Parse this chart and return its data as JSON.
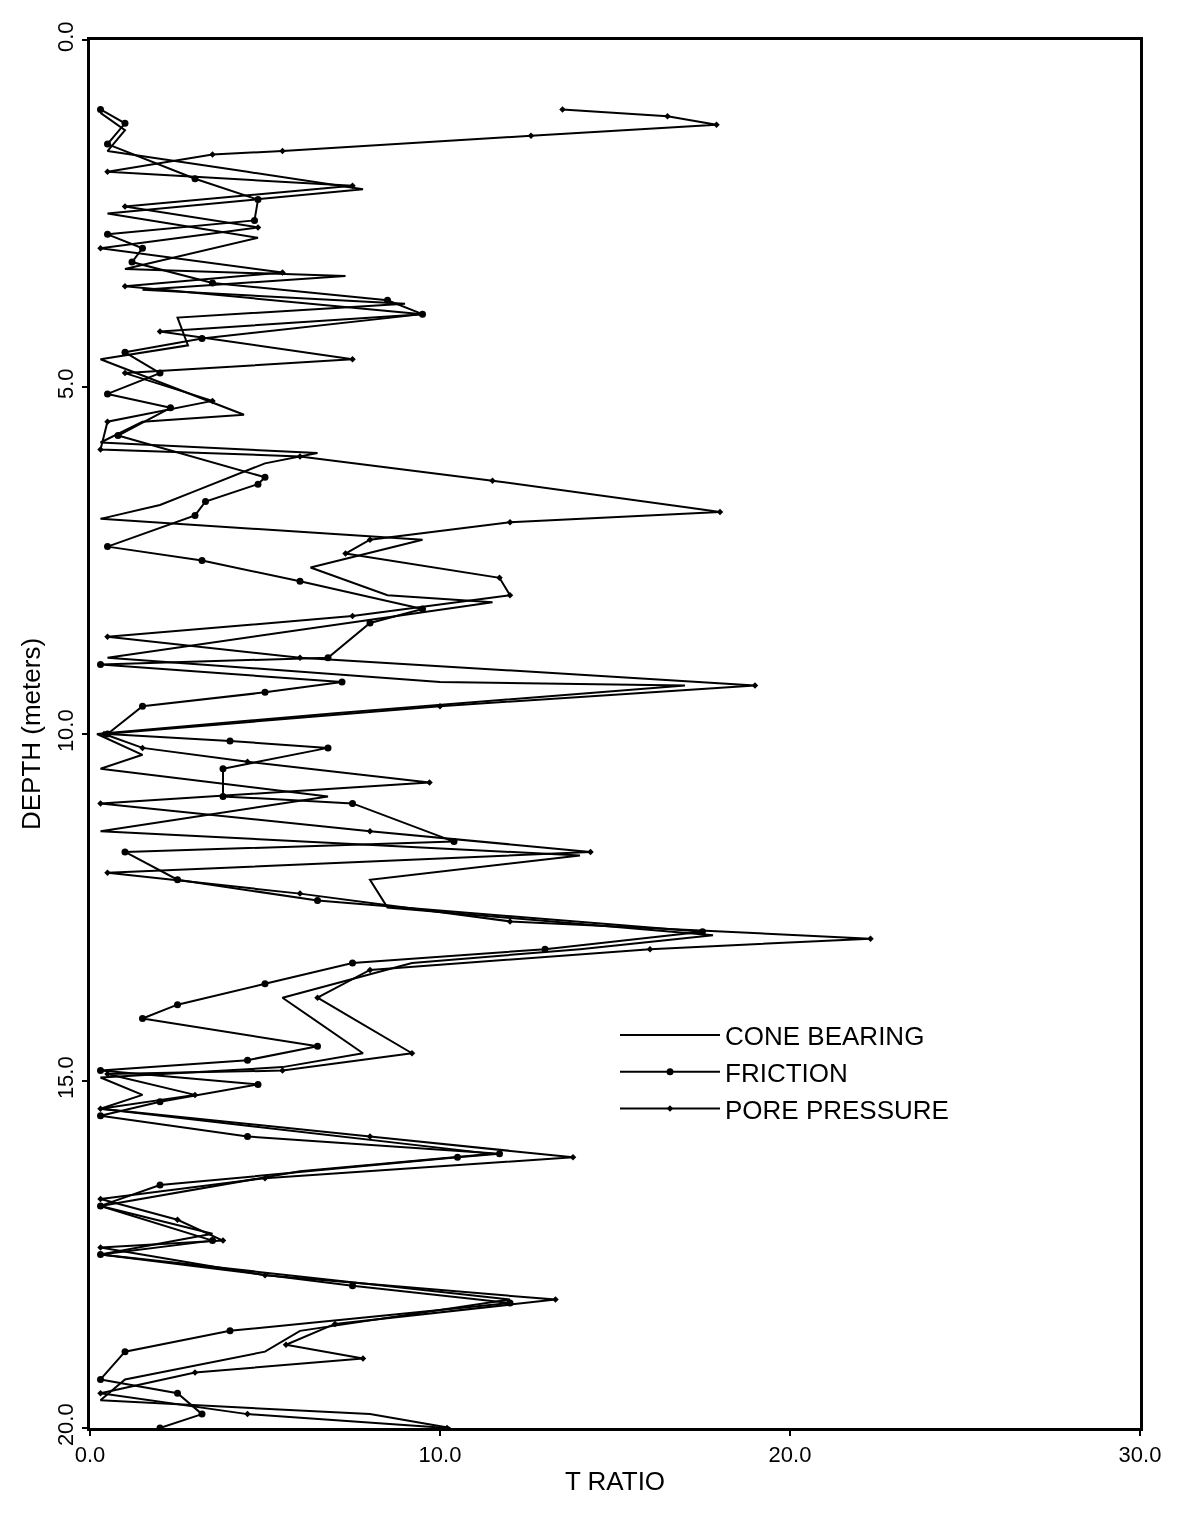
{
  "chart_data": {
    "type": "line",
    "xlabel": "T RATIO",
    "ylabel": "DEPTH (meters)",
    "xlim": [
      0,
      30
    ],
    "ylim": [
      20,
      0
    ],
    "xticks": [
      {
        "value": 0,
        "label": "0.0"
      },
      {
        "value": 10,
        "label": "10.0"
      },
      {
        "value": 20,
        "label": "20.0"
      },
      {
        "value": 30,
        "label": "30.0"
      }
    ],
    "yticks": [
      {
        "value": 0,
        "label": "0.0"
      },
      {
        "value": 5,
        "label": "5.0"
      },
      {
        "value": 10,
        "label": "10.0"
      },
      {
        "value": 15,
        "label": "15.0"
      },
      {
        "value": 20,
        "label": "20.0"
      }
    ],
    "legend": "bottom right",
    "line_style": "solid",
    "series": [
      {
        "name": "CONE BEARING",
        "color": "#000000",
        "marker": "none",
        "x": [
          0.3,
          1.0,
          0.5,
          4.5,
          7.8,
          0.5,
          4.8,
          1.0,
          7.3,
          1.5,
          9.0,
          2.5,
          2.8,
          0.3,
          4.4,
          1.5,
          0.3,
          6.5,
          5.0,
          3.0,
          2.0,
          0.3,
          9.5,
          6.3,
          8.5,
          11.5,
          0.5,
          10.0,
          17.0,
          7.0,
          0.2,
          1.5,
          0.3,
          6.8,
          0.3,
          14.0,
          8.0,
          8.5,
          17.8,
          14.0,
          9.2,
          5.5,
          7.8,
          5.5,
          0.3,
          1.5,
          0.3,
          11.5,
          6.0,
          0.3,
          3.5,
          0.3,
          12.0,
          6.0,
          5.0,
          1.0,
          0.3,
          8.0,
          10.3
        ],
        "values": [
          1.05,
          1.3,
          1.6,
          1.9,
          2.15,
          2.5,
          2.85,
          3.3,
          3.4,
          3.6,
          3.8,
          4.0,
          4.4,
          4.6,
          5.4,
          5.5,
          5.8,
          5.95,
          6.1,
          6.5,
          6.7,
          6.9,
          7.2,
          7.6,
          8.0,
          8.1,
          8.9,
          9.25,
          9.3,
          9.7,
          10.0,
          10.3,
          10.5,
          10.9,
          11.4,
          11.75,
          12.1,
          12.5,
          12.9,
          13.1,
          13.3,
          13.8,
          14.6,
          14.8,
          14.95,
          15.2,
          15.4,
          16.05,
          16.3,
          16.8,
          17.2,
          17.5,
          18.15,
          18.6,
          18.9,
          19.3,
          19.6,
          19.8,
          20.0
        ]
      },
      {
        "name": "FRICTION",
        "color": "#000000",
        "marker": "circle",
        "x": [
          0.3,
          1.0,
          0.5,
          3.0,
          4.8,
          4.7,
          0.5,
          1.5,
          1.2,
          3.5,
          8.5,
          9.5,
          3.2,
          1.0,
          2.0,
          0.5,
          2.3,
          0.8,
          5.0,
          4.8,
          3.3,
          3.0,
          0.5,
          3.2,
          6.0,
          9.5,
          8.0,
          6.8,
          0.3,
          7.2,
          5.0,
          1.5,
          0.5,
          4.0,
          6.8,
          3.8,
          3.8,
          7.5,
          10.4,
          1.0,
          2.5,
          6.5,
          17.5,
          13.0,
          7.5,
          5.0,
          2.5,
          1.5,
          6.5,
          4.5,
          0.3,
          4.8,
          2.0,
          0.3,
          4.5,
          11.7,
          10.5,
          2.0,
          0.3,
          3.5,
          0.3,
          7.5,
          12.0,
          4.0,
          1.0,
          0.3,
          2.5,
          3.2,
          2.0
        ],
        "values": [
          1.0,
          1.2,
          1.5,
          2.0,
          2.3,
          2.6,
          2.8,
          3.0,
          3.2,
          3.5,
          3.75,
          3.95,
          4.3,
          4.5,
          4.8,
          5.1,
          5.3,
          5.7,
          6.3,
          6.4,
          6.65,
          6.85,
          7.3,
          7.5,
          7.8,
          8.2,
          8.4,
          8.9,
          9.0,
          9.25,
          9.4,
          9.6,
          10.0,
          10.1,
          10.2,
          10.5,
          10.9,
          11.0,
          11.55,
          11.7,
          12.1,
          12.4,
          12.85,
          13.1,
          13.3,
          13.6,
          13.9,
          14.1,
          14.5,
          14.7,
          14.85,
          15.05,
          15.3,
          15.5,
          15.8,
          16.05,
          16.1,
          16.5,
          16.8,
          17.3,
          17.5,
          17.95,
          18.2,
          18.6,
          18.9,
          19.3,
          19.5,
          19.8,
          20.0
        ]
      },
      {
        "name": "PORE PRESSURE",
        "color": "#000000",
        "marker": "diamond",
        "x": [
          13.5,
          16.5,
          17.9,
          12.6,
          5.5,
          3.5,
          0.5,
          7.5,
          1.0,
          4.8,
          0.3,
          5.5,
          1.0,
          9.5,
          2.0,
          7.5,
          1.0,
          3.5,
          0.5,
          0.3,
          6.0,
          11.5,
          18.0,
          12.0,
          8.0,
          7.3,
          11.7,
          12.0,
          7.5,
          0.5,
          6.0,
          19.0,
          10.0,
          0.4,
          1.5,
          4.5,
          9.7,
          0.3,
          8.0,
          14.3,
          0.5,
          6.0,
          12.0,
          22.3,
          16.0,
          8.0,
          6.5,
          9.2,
          5.5,
          0.5,
          3.0,
          0.3,
          8.0,
          13.8,
          5.0,
          0.3,
          2.5,
          3.8,
          0.3,
          5.0,
          13.3,
          7.0,
          5.6,
          7.8,
          3.0,
          0.3,
          4.5,
          10.2
        ],
        "values": [
          1.0,
          1.1,
          1.22,
          1.38,
          1.6,
          1.65,
          1.9,
          2.1,
          2.4,
          2.7,
          3.0,
          3.35,
          3.55,
          3.95,
          4.2,
          4.6,
          4.8,
          5.2,
          5.5,
          5.9,
          6.0,
          6.35,
          6.8,
          6.95,
          7.2,
          7.4,
          7.75,
          8.0,
          8.3,
          8.6,
          8.9,
          9.3,
          9.6,
          10.0,
          10.2,
          10.4,
          10.7,
          11.0,
          11.4,
          11.7,
          12.0,
          12.3,
          12.7,
          12.95,
          13.1,
          13.4,
          13.8,
          14.6,
          14.85,
          14.9,
          15.2,
          15.4,
          15.8,
          16.1,
          16.4,
          16.7,
          17.0,
          17.3,
          17.4,
          17.8,
          18.15,
          18.5,
          18.8,
          19.0,
          19.2,
          19.5,
          19.8,
          20.0
        ]
      }
    ]
  }
}
